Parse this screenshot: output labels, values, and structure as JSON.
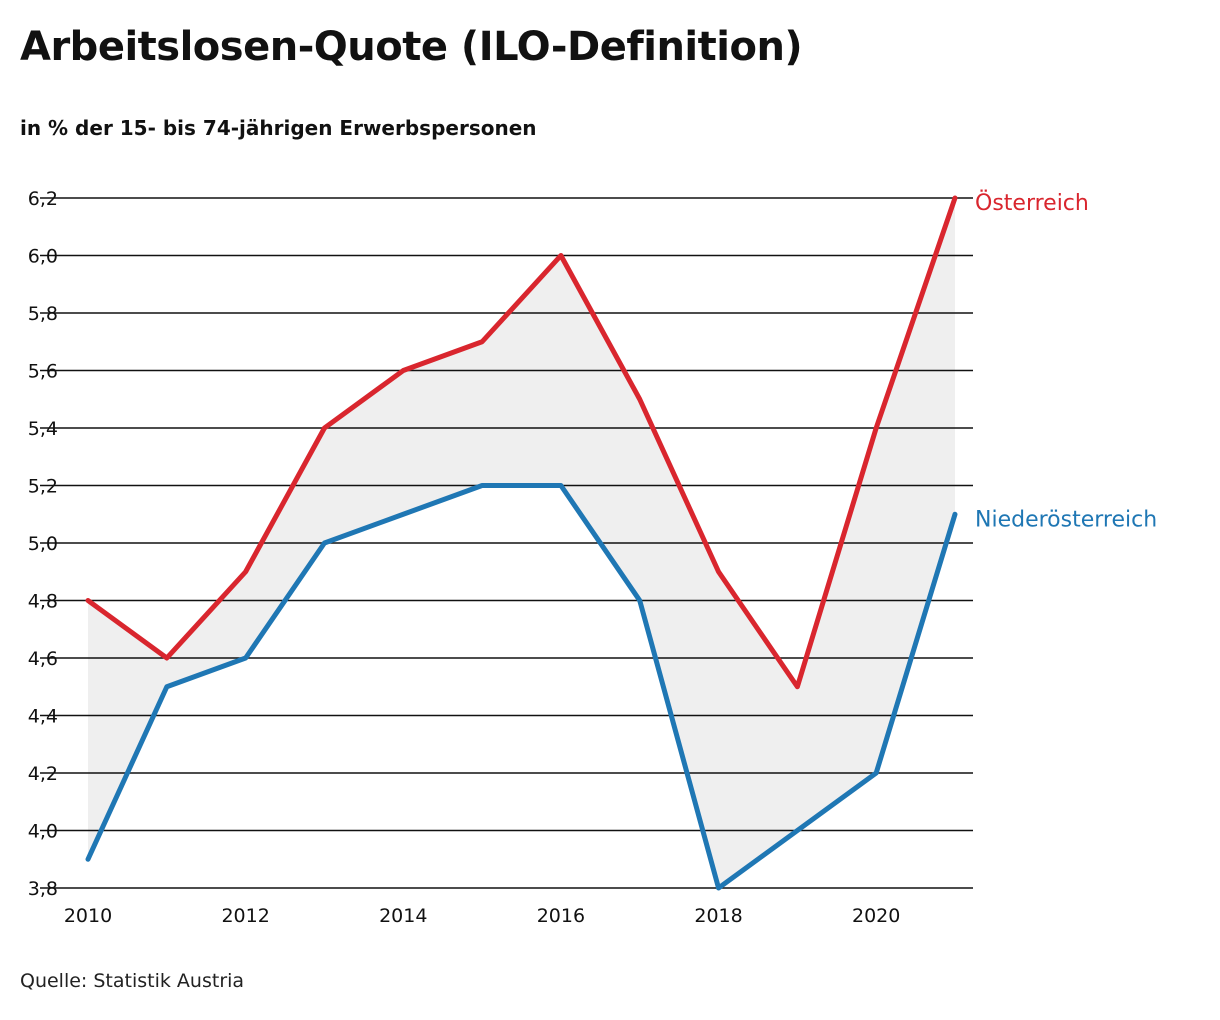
{
  "title": "Arbeitslosen-Quote (ILO-Definition)",
  "subtitle": "in % der 15- bis 74-jährigen Erwerbspersonen",
  "source": "Quelle: Statistik Austria",
  "chart_data": {
    "type": "line",
    "x": [
      2010,
      2011,
      2012,
      2013,
      2014,
      2015,
      2016,
      2017,
      2018,
      2019,
      2020,
      2021
    ],
    "x_tick_labels": [
      "2010",
      "2012",
      "2014",
      "2016",
      "2018",
      "2020"
    ],
    "x_tick_values": [
      2010,
      2012,
      2014,
      2016,
      2018,
      2020
    ],
    "y_tick_labels": [
      "3,8",
      "4,0",
      "4,2",
      "4,4",
      "4,6",
      "4,8",
      "5,0",
      "5,2",
      "5,4",
      "5,6",
      "5,8",
      "6,0",
      "6,2"
    ],
    "y_tick_values": [
      3.8,
      4.0,
      4.2,
      4.4,
      4.6,
      4.8,
      5.0,
      5.2,
      5.4,
      5.6,
      5.8,
      6.0,
      6.2
    ],
    "xlim": [
      2010,
      2021
    ],
    "ylim": [
      3.8,
      6.2
    ],
    "grid": "horizontal",
    "fill_between_series": true,
    "fill_color": "#efefef",
    "legend_placement": "direct-label-right",
    "series": [
      {
        "name": "Österreich",
        "color": "#d9262e",
        "values": [
          4.8,
          4.6,
          4.9,
          5.4,
          5.6,
          5.7,
          6.0,
          5.5,
          4.9,
          4.5,
          5.4,
          6.2
        ]
      },
      {
        "name": "Niederösterreich",
        "color": "#1f77b4",
        "values": [
          3.9,
          4.5,
          4.6,
          5.0,
          5.1,
          5.2,
          5.2,
          4.8,
          3.8,
          4.0,
          4.2,
          5.1
        ]
      }
    ]
  }
}
